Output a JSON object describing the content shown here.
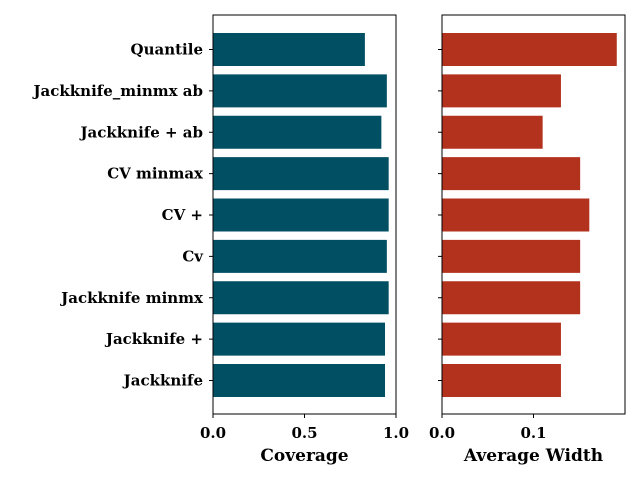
{
  "chart_data": [
    {
      "type": "bar",
      "orientation": "horizontal",
      "categories": [
        "Jackknife",
        "Jackknife +",
        "Jackknife minmx",
        "Cv",
        "CV +",
        "CV minmax",
        "Jackknife + ab",
        "Jackknife_minmx ab",
        "Quantile"
      ],
      "values": [
        0.94,
        0.94,
        0.96,
        0.95,
        0.96,
        0.96,
        0.92,
        0.95,
        0.83
      ],
      "xlabel": "Coverage",
      "xlim": [
        0,
        1.0
      ],
      "xticks": [
        "0.0",
        "0.5",
        "1.0"
      ],
      "color": "#004f63",
      "grid": false
    },
    {
      "type": "bar",
      "orientation": "horizontal",
      "categories": [
        "Jackknife",
        "Jackknife +",
        "Jackknife minmx",
        "Cv",
        "CV +",
        "CV minmax",
        "Jackknife + ab",
        "Jackknife_minmx ab",
        "Quantile"
      ],
      "values": [
        0.13,
        0.13,
        0.151,
        0.151,
        0.161,
        0.151,
        0.11,
        0.13,
        0.191
      ],
      "xlabel": "Average Width",
      "xlim": [
        0,
        0.2
      ],
      "xticks": [
        "0.0",
        "0.1"
      ],
      "tick_values": [
        0,
        0.1
      ],
      "color": "#b3321e",
      "grid": false
    }
  ]
}
